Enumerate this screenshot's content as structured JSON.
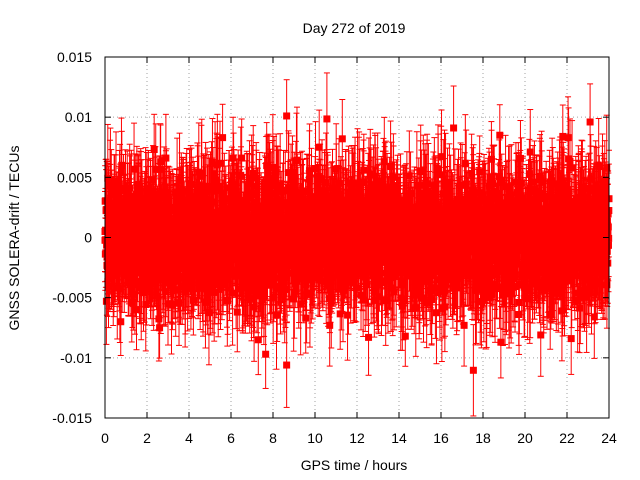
{
  "chart_data": {
    "type": "scatter",
    "title": "Day 272 of 2019",
    "xlabel": "GPS time / hours",
    "ylabel": "GNSS SOLERA-drift / TECUs",
    "xlim": [
      0,
      24
    ],
    "ylim": [
      -0.015,
      0.015
    ],
    "xticks": [
      "0",
      "2",
      "4",
      "6",
      "8",
      "10",
      "12",
      "14",
      "16",
      "18",
      "20",
      "22",
      "24"
    ],
    "yticks": [
      "-0.015",
      "-0.01",
      "-0.005",
      "0",
      "0.005",
      "0.01",
      "0.015"
    ],
    "grid": true,
    "legend": "none",
    "series": [
      {
        "color": "#ff0000",
        "marker": "square",
        "error_bars": true,
        "values_summary": "dense noise around 0, roughly ±0.005, uncertainty ±0.004",
        "points": [
          [
            0.0,
            0.0005
          ],
          [
            0.3,
            0.002
          ],
          [
            0.75,
            -0.007
          ],
          [
            0.8,
            0.006
          ],
          [
            1.5,
            -0.006
          ],
          [
            2.6,
            -0.0075
          ],
          [
            2.65,
            0.0063
          ],
          [
            2.9,
            0.0066
          ],
          [
            3.0,
            -0.0055
          ],
          [
            5.6,
            0.0083
          ],
          [
            6.1,
            0.0066
          ],
          [
            6.3,
            -0.0062
          ],
          [
            7.3,
            -0.0085
          ],
          [
            7.65,
            -0.0097
          ],
          [
            8.65,
            0.0101
          ],
          [
            8.65,
            -0.0106
          ],
          [
            10.2,
            0.0075
          ],
          [
            10.7,
            -0.0073
          ],
          [
            11.3,
            0.0082
          ],
          [
            12.55,
            -0.0083
          ],
          [
            13.3,
            0.0063
          ],
          [
            14.3,
            -0.0082
          ],
          [
            16.6,
            0.0091
          ],
          [
            17.1,
            -0.0073
          ],
          [
            18.4,
            0.0065
          ],
          [
            18.8,
            0.0085
          ],
          [
            18.85,
            -0.0087
          ],
          [
            19.7,
            -0.0064
          ],
          [
            20.25,
            0.0071
          ],
          [
            20.75,
            -0.0081
          ],
          [
            21.2,
            -0.0064
          ],
          [
            21.8,
            0.0084
          ],
          [
            22.05,
            0.0083
          ],
          [
            22.2,
            -0.0084
          ],
          [
            23.1,
            0.0096
          ],
          [
            23.3,
            -0.0066
          ],
          [
            23.8,
            0.0046
          ]
        ]
      }
    ]
  }
}
